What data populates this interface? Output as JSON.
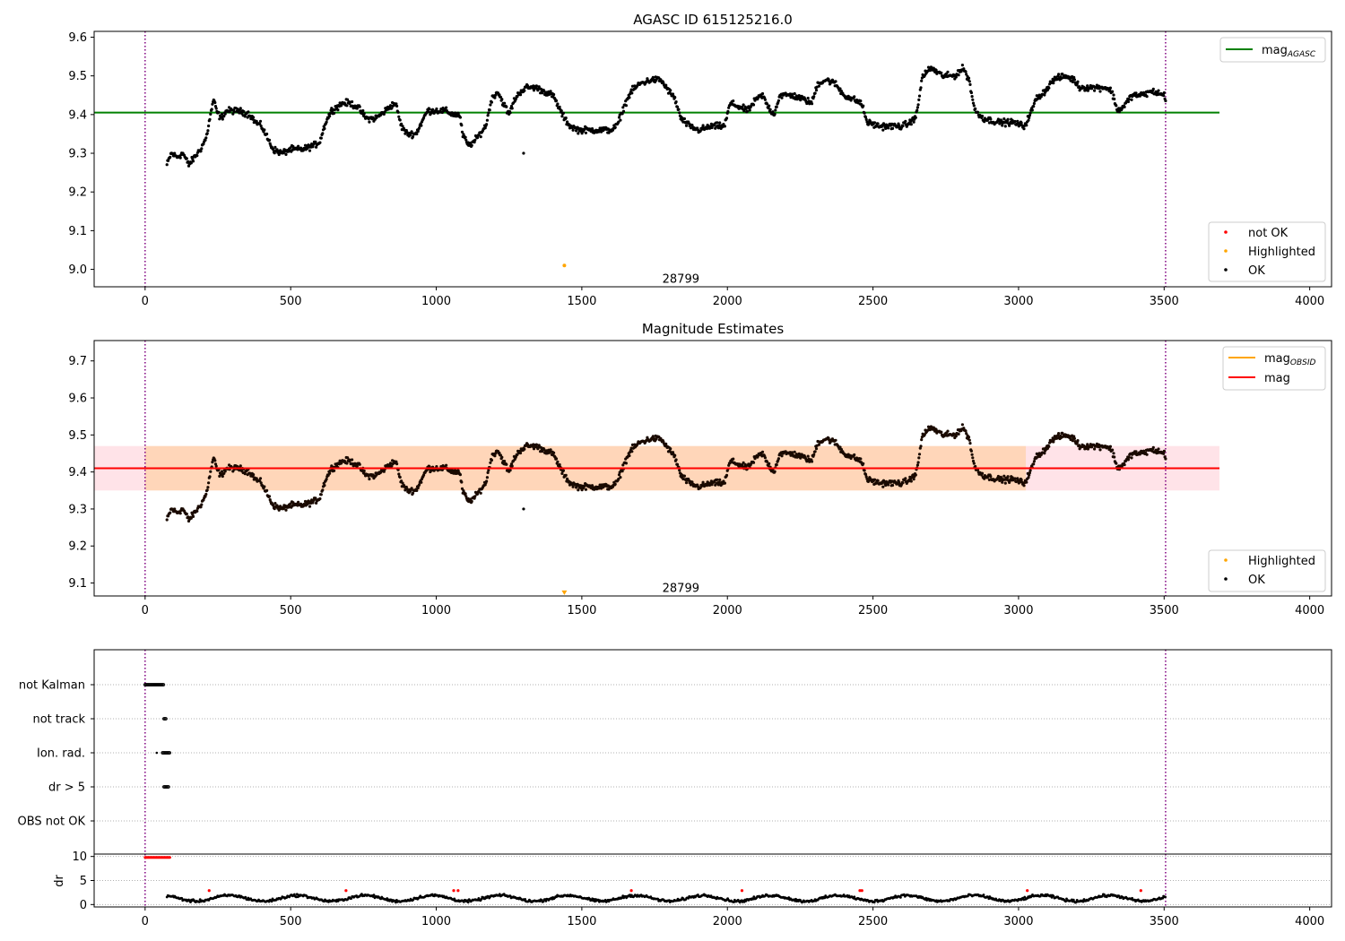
{
  "chart_data": [
    {
      "type": "scatter",
      "title": "AGASC ID 615125216.0",
      "xlim": [
        -175,
        4075
      ],
      "ylim": [
        8.955,
        9.615
      ],
      "xticks": [
        0,
        500,
        1000,
        1500,
        2000,
        2500,
        3000,
        3500,
        4000
      ],
      "yticks": [
        9.0,
        9.1,
        9.2,
        9.3,
        9.4,
        9.5,
        9.6
      ],
      "grid": false,
      "reference_line": {
        "name": "mag",
        "subscript": "AGASC",
        "y": 9.405,
        "x_end": 3690,
        "color": "#008000"
      },
      "vlines": [
        0,
        3505
      ],
      "vline_color": "#800080",
      "annotation": {
        "text": "28799",
        "x": 1680,
        "y": 8.975
      },
      "highlighted_points": [
        {
          "x": 1440,
          "y": 9.01
        }
      ],
      "outlier_points": [
        {
          "x": 1300,
          "y": 9.3
        }
      ],
      "legend_upper": {
        "placement": "upper-right",
        "entries": [
          {
            "label": "mag",
            "subscript": "AGASC",
            "color": "#008000"
          }
        ]
      },
      "legend_lower": {
        "placement": "lower-right",
        "entries": [
          {
            "label": "not OK",
            "color": "#ff0000"
          },
          {
            "label": "Highlighted",
            "color": "#ffa500"
          },
          {
            "label": "OK",
            "color": "#000000"
          }
        ]
      },
      "trend": [
        [
          75,
          9.27
        ],
        [
          90,
          9.3
        ],
        [
          110,
          9.29
        ],
        [
          130,
          9.3
        ],
        [
          150,
          9.27
        ],
        [
          170,
          9.29
        ],
        [
          190,
          9.31
        ],
        [
          210,
          9.34
        ],
        [
          225,
          9.4
        ],
        [
          235,
          9.44
        ],
        [
          245,
          9.41
        ],
        [
          260,
          9.39
        ],
        [
          280,
          9.41
        ],
        [
          320,
          9.41
        ],
        [
          360,
          9.4
        ],
        [
          380,
          9.38
        ],
        [
          400,
          9.37
        ],
        [
          420,
          9.34
        ],
        [
          440,
          9.31
        ],
        [
          470,
          9.3
        ],
        [
          500,
          9.31
        ],
        [
          540,
          9.31
        ],
        [
          580,
          9.32
        ],
        [
          600,
          9.33
        ],
        [
          620,
          9.38
        ],
        [
          640,
          9.41
        ],
        [
          680,
          9.43
        ],
        [
          700,
          9.43
        ],
        [
          730,
          9.42
        ],
        [
          760,
          9.39
        ],
        [
          790,
          9.39
        ],
        [
          810,
          9.4
        ],
        [
          840,
          9.42
        ],
        [
          860,
          9.43
        ],
        [
          880,
          9.37
        ],
        [
          900,
          9.35
        ],
        [
          930,
          9.35
        ],
        [
          950,
          9.38
        ],
        [
          970,
          9.41
        ],
        [
          1000,
          9.41
        ],
        [
          1030,
          9.41
        ],
        [
          1060,
          9.4
        ],
        [
          1080,
          9.4
        ],
        [
          1090,
          9.35
        ],
        [
          1110,
          9.32
        ],
        [
          1130,
          9.33
        ],
        [
          1150,
          9.35
        ],
        [
          1170,
          9.37
        ],
        [
          1190,
          9.44
        ],
        [
          1210,
          9.46
        ],
        [
          1230,
          9.43
        ],
        [
          1250,
          9.4
        ],
        [
          1270,
          9.44
        ],
        [
          1290,
          9.46
        ],
        [
          1310,
          9.47
        ],
        [
          1340,
          9.47
        ],
        [
          1370,
          9.46
        ],
        [
          1400,
          9.45
        ],
        [
          1420,
          9.42
        ],
        [
          1440,
          9.39
        ],
        [
          1460,
          9.37
        ],
        [
          1490,
          9.36
        ],
        [
          1520,
          9.36
        ],
        [
          1560,
          9.36
        ],
        [
          1600,
          9.36
        ],
        [
          1620,
          9.37
        ],
        [
          1650,
          9.43
        ],
        [
          1670,
          9.46
        ],
        [
          1700,
          9.48
        ],
        [
          1740,
          9.49
        ],
        [
          1770,
          9.49
        ],
        [
          1800,
          9.46
        ],
        [
          1820,
          9.44
        ],
        [
          1840,
          9.39
        ],
        [
          1870,
          9.37
        ],
        [
          1900,
          9.36
        ],
        [
          1950,
          9.37
        ],
        [
          1990,
          9.37
        ],
        [
          2010,
          9.43
        ],
        [
          2040,
          9.42
        ],
        [
          2070,
          9.41
        ],
        [
          2100,
          9.44
        ],
        [
          2120,
          9.45
        ],
        [
          2140,
          9.42
        ],
        [
          2160,
          9.4
        ],
        [
          2180,
          9.45
        ],
        [
          2220,
          9.45
        ],
        [
          2260,
          9.44
        ],
        [
          2290,
          9.43
        ],
        [
          2310,
          9.48
        ],
        [
          2340,
          9.49
        ],
        [
          2370,
          9.48
        ],
        [
          2400,
          9.45
        ],
        [
          2430,
          9.44
        ],
        [
          2460,
          9.43
        ],
        [
          2480,
          9.38
        ],
        [
          2520,
          9.37
        ],
        [
          2560,
          9.37
        ],
        [
          2600,
          9.37
        ],
        [
          2630,
          9.38
        ],
        [
          2650,
          9.4
        ],
        [
          2670,
          9.5
        ],
        [
          2700,
          9.52
        ],
        [
          2740,
          9.5
        ],
        [
          2780,
          9.5
        ],
        [
          2810,
          9.52
        ],
        [
          2830,
          9.49
        ],
        [
          2850,
          9.41
        ],
        [
          2880,
          9.39
        ],
        [
          2930,
          9.38
        ],
        [
          2980,
          9.38
        ],
        [
          3020,
          9.37
        ],
        [
          3040,
          9.4
        ],
        [
          3060,
          9.44
        ],
        [
          3090,
          9.46
        ],
        [
          3120,
          9.49
        ],
        [
          3160,
          9.5
        ],
        [
          3190,
          9.49
        ],
        [
          3210,
          9.47
        ],
        [
          3260,
          9.47
        ],
        [
          3300,
          9.47
        ],
        [
          3320,
          9.46
        ],
        [
          3340,
          9.41
        ],
        [
          3360,
          9.42
        ],
        [
          3390,
          9.45
        ],
        [
          3420,
          9.45
        ],
        [
          3460,
          9.46
        ],
        [
          3500,
          9.45
        ],
        [
          3505,
          9.44
        ]
      ]
    },
    {
      "type": "scatter",
      "title": "Magnitude Estimates",
      "xlim": [
        -175,
        4075
      ],
      "ylim": [
        9.065,
        9.755
      ],
      "xticks": [
        0,
        500,
        1000,
        1500,
        2000,
        2500,
        3000,
        3500,
        4000
      ],
      "yticks": [
        9.1,
        9.2,
        9.3,
        9.4,
        9.5,
        9.6,
        9.7
      ],
      "grid": false,
      "mean_line": {
        "name": "mag",
        "y": 9.41,
        "x_end": 3690,
        "color": "#ff0000"
      },
      "obsid_band": {
        "y_low": 9.35,
        "y_high": 9.47,
        "x_end": 3690,
        "color": "#ffc0cb",
        "inner_color": "#ffa500",
        "inner_x_end": 3025
      },
      "vlines": [
        0,
        3505
      ],
      "vline_color": "#800080",
      "annotation": {
        "text": "28799",
        "x": 1680,
        "y": 9.085
      },
      "highlighted_points": [
        {
          "x": 1440,
          "y": 9.075,
          "marker": "triangle-down"
        }
      ],
      "outlier_points": [
        {
          "x": 1300,
          "y": 9.3
        }
      ],
      "legend_upper": {
        "placement": "upper-right",
        "entries": [
          {
            "label": "mag",
            "subscript": "OBSID",
            "color": "#ffa500"
          },
          {
            "label": "mag",
            "color": "#ff0000"
          }
        ]
      },
      "legend_lower": {
        "placement": "lower-right",
        "entries": [
          {
            "label": "Highlighted",
            "color": "#ffa500"
          },
          {
            "label": "OK",
            "color": "#000000"
          }
        ]
      }
    },
    {
      "type": "scatter",
      "subtype": "flags",
      "xlim": [
        -175,
        4075
      ],
      "categories": [
        "not Kalman",
        "not track",
        "Ion. rad.",
        "dr > 5",
        "OBS not OK"
      ],
      "grid": "dotted",
      "vlines": [
        0,
        3505
      ],
      "flag_ranges": [
        {
          "flag": "not Kalman",
          "x_start": 0,
          "x_end": 65
        },
        {
          "flag": "not track",
          "x_start": 65,
          "x_end": 72
        },
        {
          "flag": "Ion. rad.",
          "x_start": 60,
          "x_end": 85,
          "extra_x": [
            40
          ]
        },
        {
          "flag": "dr > 5",
          "x_start": 65,
          "x_end": 82
        }
      ]
    },
    {
      "type": "scatter",
      "ylabel": "dr",
      "xlim": [
        -175,
        4075
      ],
      "ylim": [
        -0.5,
        10.5
      ],
      "xticks": [
        0,
        500,
        1000,
        1500,
        2000,
        2500,
        3000,
        3500,
        4000
      ],
      "yticks": [
        0,
        5,
        10
      ],
      "vlines": [
        0,
        3505
      ],
      "capped_points": {
        "x_start": 0,
        "x_end": 85,
        "y": 9.8,
        "color": "#ff0000"
      },
      "red_points": [
        220,
        690,
        1060,
        1075,
        1670,
        2050,
        2455,
        2462,
        3030,
        3420
      ]
    }
  ]
}
